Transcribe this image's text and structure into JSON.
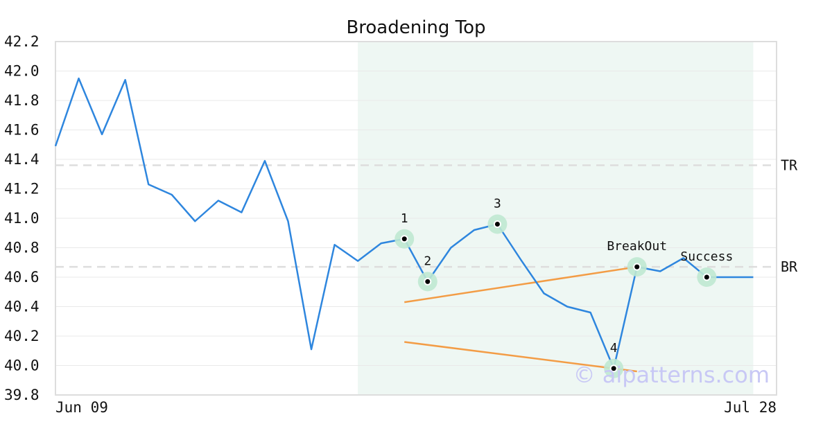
{
  "chart_data": {
    "type": "line",
    "title": "Broadening Top",
    "xlabel": "",
    "ylabel": "",
    "ylim": [
      39.8,
      42.2
    ],
    "y_ticks": [
      "42.2",
      "42.0",
      "41.8",
      "41.6",
      "41.4",
      "41.2",
      "41.0",
      "40.8",
      "40.6",
      "40.4",
      "40.2",
      "40.0",
      "39.8"
    ],
    "x_tick_labels": [
      "Jun 09",
      "Jul 28"
    ],
    "grid": true,
    "series": [
      {
        "values": [
          41.49,
          41.95,
          41.57,
          41.94,
          41.23,
          41.16,
          40.98,
          41.12,
          41.04,
          41.39,
          40.98,
          40.11,
          40.82,
          40.71,
          40.83,
          40.86,
          40.57,
          40.8,
          40.92,
          40.96,
          40.72,
          40.49,
          40.4,
          40.36,
          39.98,
          40.67,
          40.64,
          40.73,
          40.6,
          40.6,
          40.6
        ],
        "color": "#2e86de"
      }
    ],
    "highlight_range": {
      "from_index": 13,
      "to_index": 30,
      "color": "#eef7f3"
    },
    "reference_lines": [
      {
        "label": "TR",
        "value": 41.36
      },
      {
        "label": "BR",
        "value": 40.67
      }
    ],
    "trend_lines": [
      {
        "from": [
          15,
          40.43
        ],
        "to": [
          25,
          40.67
        ]
      },
      {
        "from": [
          15,
          40.16
        ],
        "to": [
          25,
          39.96
        ]
      }
    ],
    "markers": [
      {
        "index": 15,
        "value": 40.86,
        "label": "1"
      },
      {
        "index": 16,
        "value": 40.57,
        "label": "2"
      },
      {
        "index": 19,
        "value": 40.96,
        "label": "3"
      },
      {
        "index": 24,
        "value": 39.98,
        "label": "4"
      },
      {
        "index": 25,
        "value": 40.67,
        "label": "BreakOut"
      },
      {
        "index": 28,
        "value": 40.6,
        "label": "Success"
      }
    ],
    "watermark": "© aipatterns.com",
    "colors": {
      "line": "#2e86de",
      "trend": "#f39c45",
      "marker_halo": "#bfe8d2",
      "reference": "#dddddd",
      "grid": "#e9e9e9",
      "frame": "#dddddd"
    }
  }
}
